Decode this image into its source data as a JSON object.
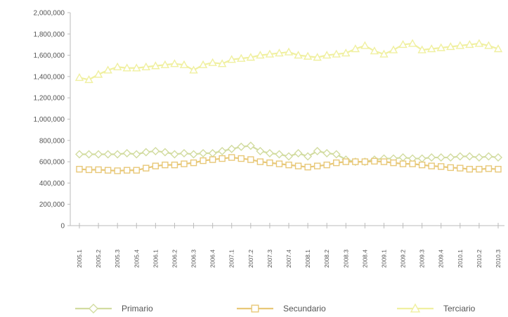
{
  "chart_data": {
    "type": "line",
    "title": "",
    "xlabel": "",
    "ylabel": "",
    "ylim": [
      0,
      2000000
    ],
    "yticks": [
      0,
      200000,
      400000,
      600000,
      800000,
      1000000,
      1200000,
      1400000,
      1600000,
      1800000,
      2000000
    ],
    "ytick_labels": [
      "0",
      "200,000",
      "400,000",
      "600,000",
      "800,000",
      "1,000,000",
      "1,200,000",
      "1,400,000",
      "1,600,000",
      "1,800,000",
      "2,000,000"
    ],
    "grid": false,
    "legend_position": "bottom",
    "categories": [
      "2005.1",
      "2005.2",
      "2005.3",
      "2005.4",
      "2006.1",
      "2006.2",
      "2006.3",
      "2006.4",
      "2007.1",
      "2007.2",
      "2007.3",
      "2007.4",
      "2008.1",
      "2008.2",
      "2008.3",
      "2008.4",
      "2009.1",
      "2009.2",
      "2009.3",
      "2009.4",
      "2010.1",
      "2010.2",
      "2010.3"
    ],
    "x": [
      0,
      0.5,
      1,
      1.5,
      2,
      2.5,
      3,
      3.5,
      4,
      4.5,
      5,
      5.5,
      6,
      6.5,
      7,
      7.5,
      8,
      8.5,
      9,
      9.5,
      10,
      10.5,
      11,
      11.5,
      12,
      12.5,
      13,
      13.5,
      14,
      14.5,
      15,
      15.5,
      16,
      16.5,
      17,
      17.5,
      18,
      18.5,
      19,
      19.5,
      20,
      20.5,
      21,
      21.5,
      22
    ],
    "series": [
      {
        "name": "Primario",
        "color": "#d2dca0",
        "marker": "diamond",
        "values": [
          670000,
          670000,
          670000,
          670000,
          670000,
          680000,
          670000,
          690000,
          700000,
          690000,
          670000,
          680000,
          670000,
          680000,
          680000,
          700000,
          720000,
          740000,
          750000,
          700000,
          680000,
          670000,
          650000,
          680000,
          650000,
          700000,
          680000,
          670000,
          620000,
          600000,
          600000,
          620000,
          630000,
          630000,
          640000,
          630000,
          630000,
          640000,
          640000,
          640000,
          650000,
          650000,
          640000,
          650000,
          640000
        ]
      },
      {
        "name": "Secundario",
        "color": "#e8c878",
        "marker": "square",
        "values": [
          530000,
          525000,
          525000,
          520000,
          515000,
          520000,
          520000,
          540000,
          560000,
          570000,
          570000,
          580000,
          590000,
          610000,
          620000,
          630000,
          640000,
          630000,
          620000,
          600000,
          590000,
          580000,
          570000,
          560000,
          550000,
          560000,
          570000,
          590000,
          600000,
          600000,
          600000,
          605000,
          600000,
          590000,
          580000,
          580000,
          570000,
          560000,
          555000,
          545000,
          540000,
          530000,
          530000,
          535000,
          530000
        ]
      },
      {
        "name": "Terciario",
        "color": "#f0f0a0",
        "marker": "triangle",
        "values": [
          1390000,
          1370000,
          1420000,
          1460000,
          1490000,
          1480000,
          1480000,
          1490000,
          1500000,
          1510000,
          1520000,
          1510000,
          1460000,
          1510000,
          1530000,
          1520000,
          1560000,
          1570000,
          1580000,
          1600000,
          1610000,
          1620000,
          1630000,
          1600000,
          1590000,
          1580000,
          1600000,
          1610000,
          1620000,
          1660000,
          1690000,
          1640000,
          1610000,
          1650000,
          1700000,
          1710000,
          1650000,
          1660000,
          1670000,
          1680000,
          1690000,
          1700000,
          1710000,
          1690000,
          1660000
        ]
      }
    ]
  }
}
